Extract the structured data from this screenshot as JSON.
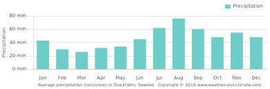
{
  "chart_data": {
    "type": "bar",
    "categories": [
      "Jan",
      "Feb",
      "Mar",
      "Apr",
      "May",
      "Jun",
      "Jul",
      "Aug",
      "Sep",
      "Oct",
      "Nov",
      "Dec"
    ],
    "series": [
      {
        "name": "Precipitation",
        "color": "#6dcdc8",
        "values": [
          43,
          30,
          26,
          32,
          34,
          45,
          62,
          76,
          60,
          48,
          55,
          48
        ]
      }
    ],
    "ylim": [
      0,
      80
    ],
    "yticks": [
      {
        "value": 0,
        "label": "0 mm"
      },
      {
        "value": 20,
        "label": "20 mm"
      },
      {
        "value": 40,
        "label": "40 mm"
      },
      {
        "value": 60,
        "label": "60 mm"
      },
      {
        "value": 80,
        "label": "80 mm"
      }
    ],
    "ylabel": "Precipitation",
    "xlabel": "Average precipitation (rain/snow) in Stockholm, Sweden   Copyright © 2019 www.weather-and-climate.com",
    "grid": true,
    "legend": "upper right"
  }
}
